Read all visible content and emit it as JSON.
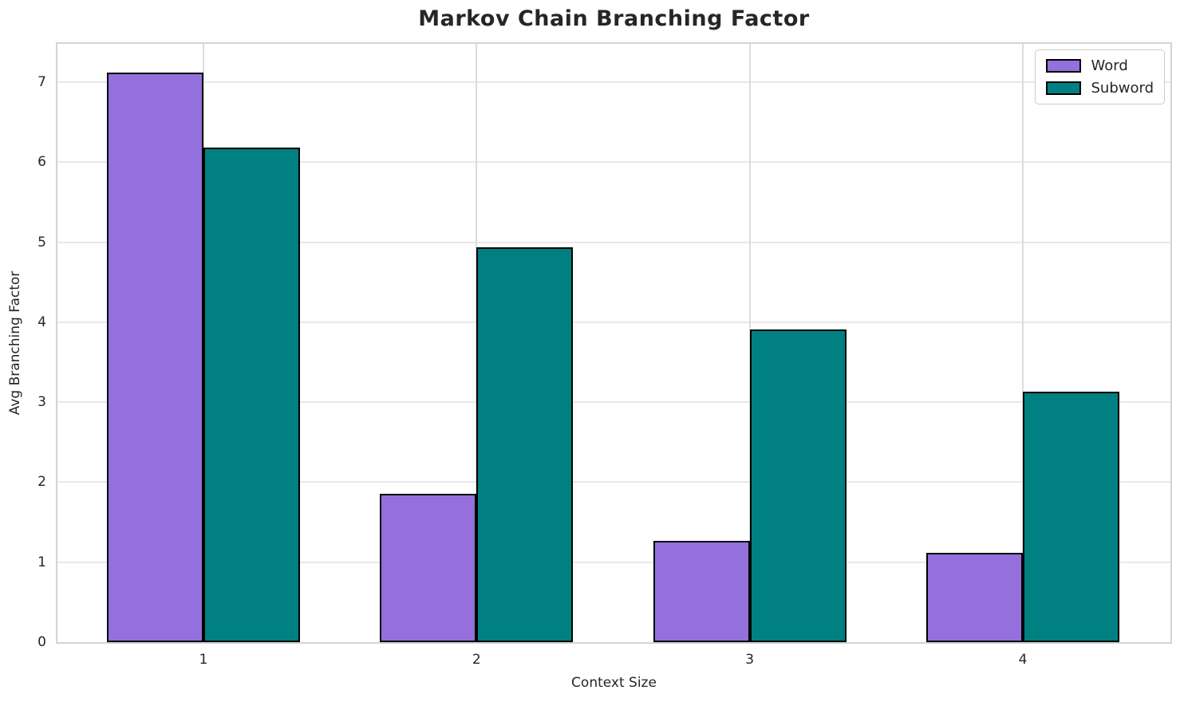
{
  "chart_data": {
    "type": "bar",
    "title": "Markov Chain Branching Factor",
    "xlabel": "Context Size",
    "ylabel": "Avg Branching Factor",
    "categories": [
      "1",
      "2",
      "3",
      "4"
    ],
    "series": [
      {
        "name": "Word",
        "color": "#9370DB",
        "edge_color": "#000000",
        "values": [
          7.12,
          1.86,
          1.27,
          1.12
        ]
      },
      {
        "name": "Subword",
        "color": "#008080",
        "edge_color": "#000000",
        "values": [
          6.18,
          4.94,
          3.91,
          3.13
        ]
      }
    ],
    "ylim": [
      0,
      7.48
    ],
    "yticks": [
      0,
      1,
      2,
      3,
      4,
      5,
      6,
      7
    ],
    "grid": true,
    "grid_axes": "both",
    "legend_position": "upper right",
    "background_color": "#ffffff",
    "grid_color": "#e8e8e8",
    "spine_color": "#d4d4d4",
    "text_color": "#262626"
  }
}
